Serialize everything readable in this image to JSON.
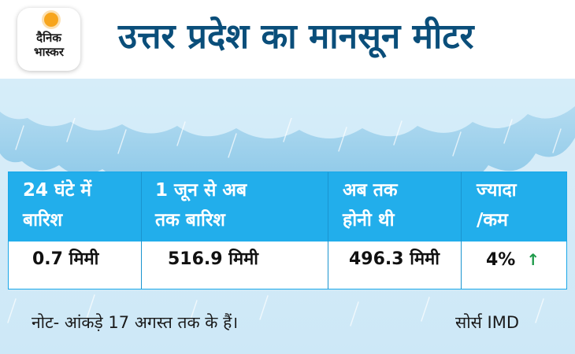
{
  "logo": {
    "line1": "दैनिक",
    "line2": "भास्कर"
  },
  "title": "उत्तर प्रदेश का मानसून मीटर",
  "table": {
    "headers": [
      [
        "24 घंटे में",
        "बारिश"
      ],
      [
        "1 जून से अब",
        "तक बारिश"
      ],
      [
        "अब तक",
        "होनी थी"
      ],
      [
        "ज्यादा",
        "/कम"
      ]
    ],
    "values": [
      "0.7 मिमी",
      "516.9 मिमी",
      "496.3 मिमी",
      "4%"
    ],
    "trend_icon": "up-arrow-icon"
  },
  "footer": {
    "note": "नोट- आंकड़े 17 अगस्त तक के हैं।",
    "source": "सोर्स IMD"
  },
  "colors": {
    "title": "#0a4e7a",
    "header_band": "#22aeeb",
    "trend_up": "#1e9a4a",
    "logo_sun": "#f7a51c"
  }
}
